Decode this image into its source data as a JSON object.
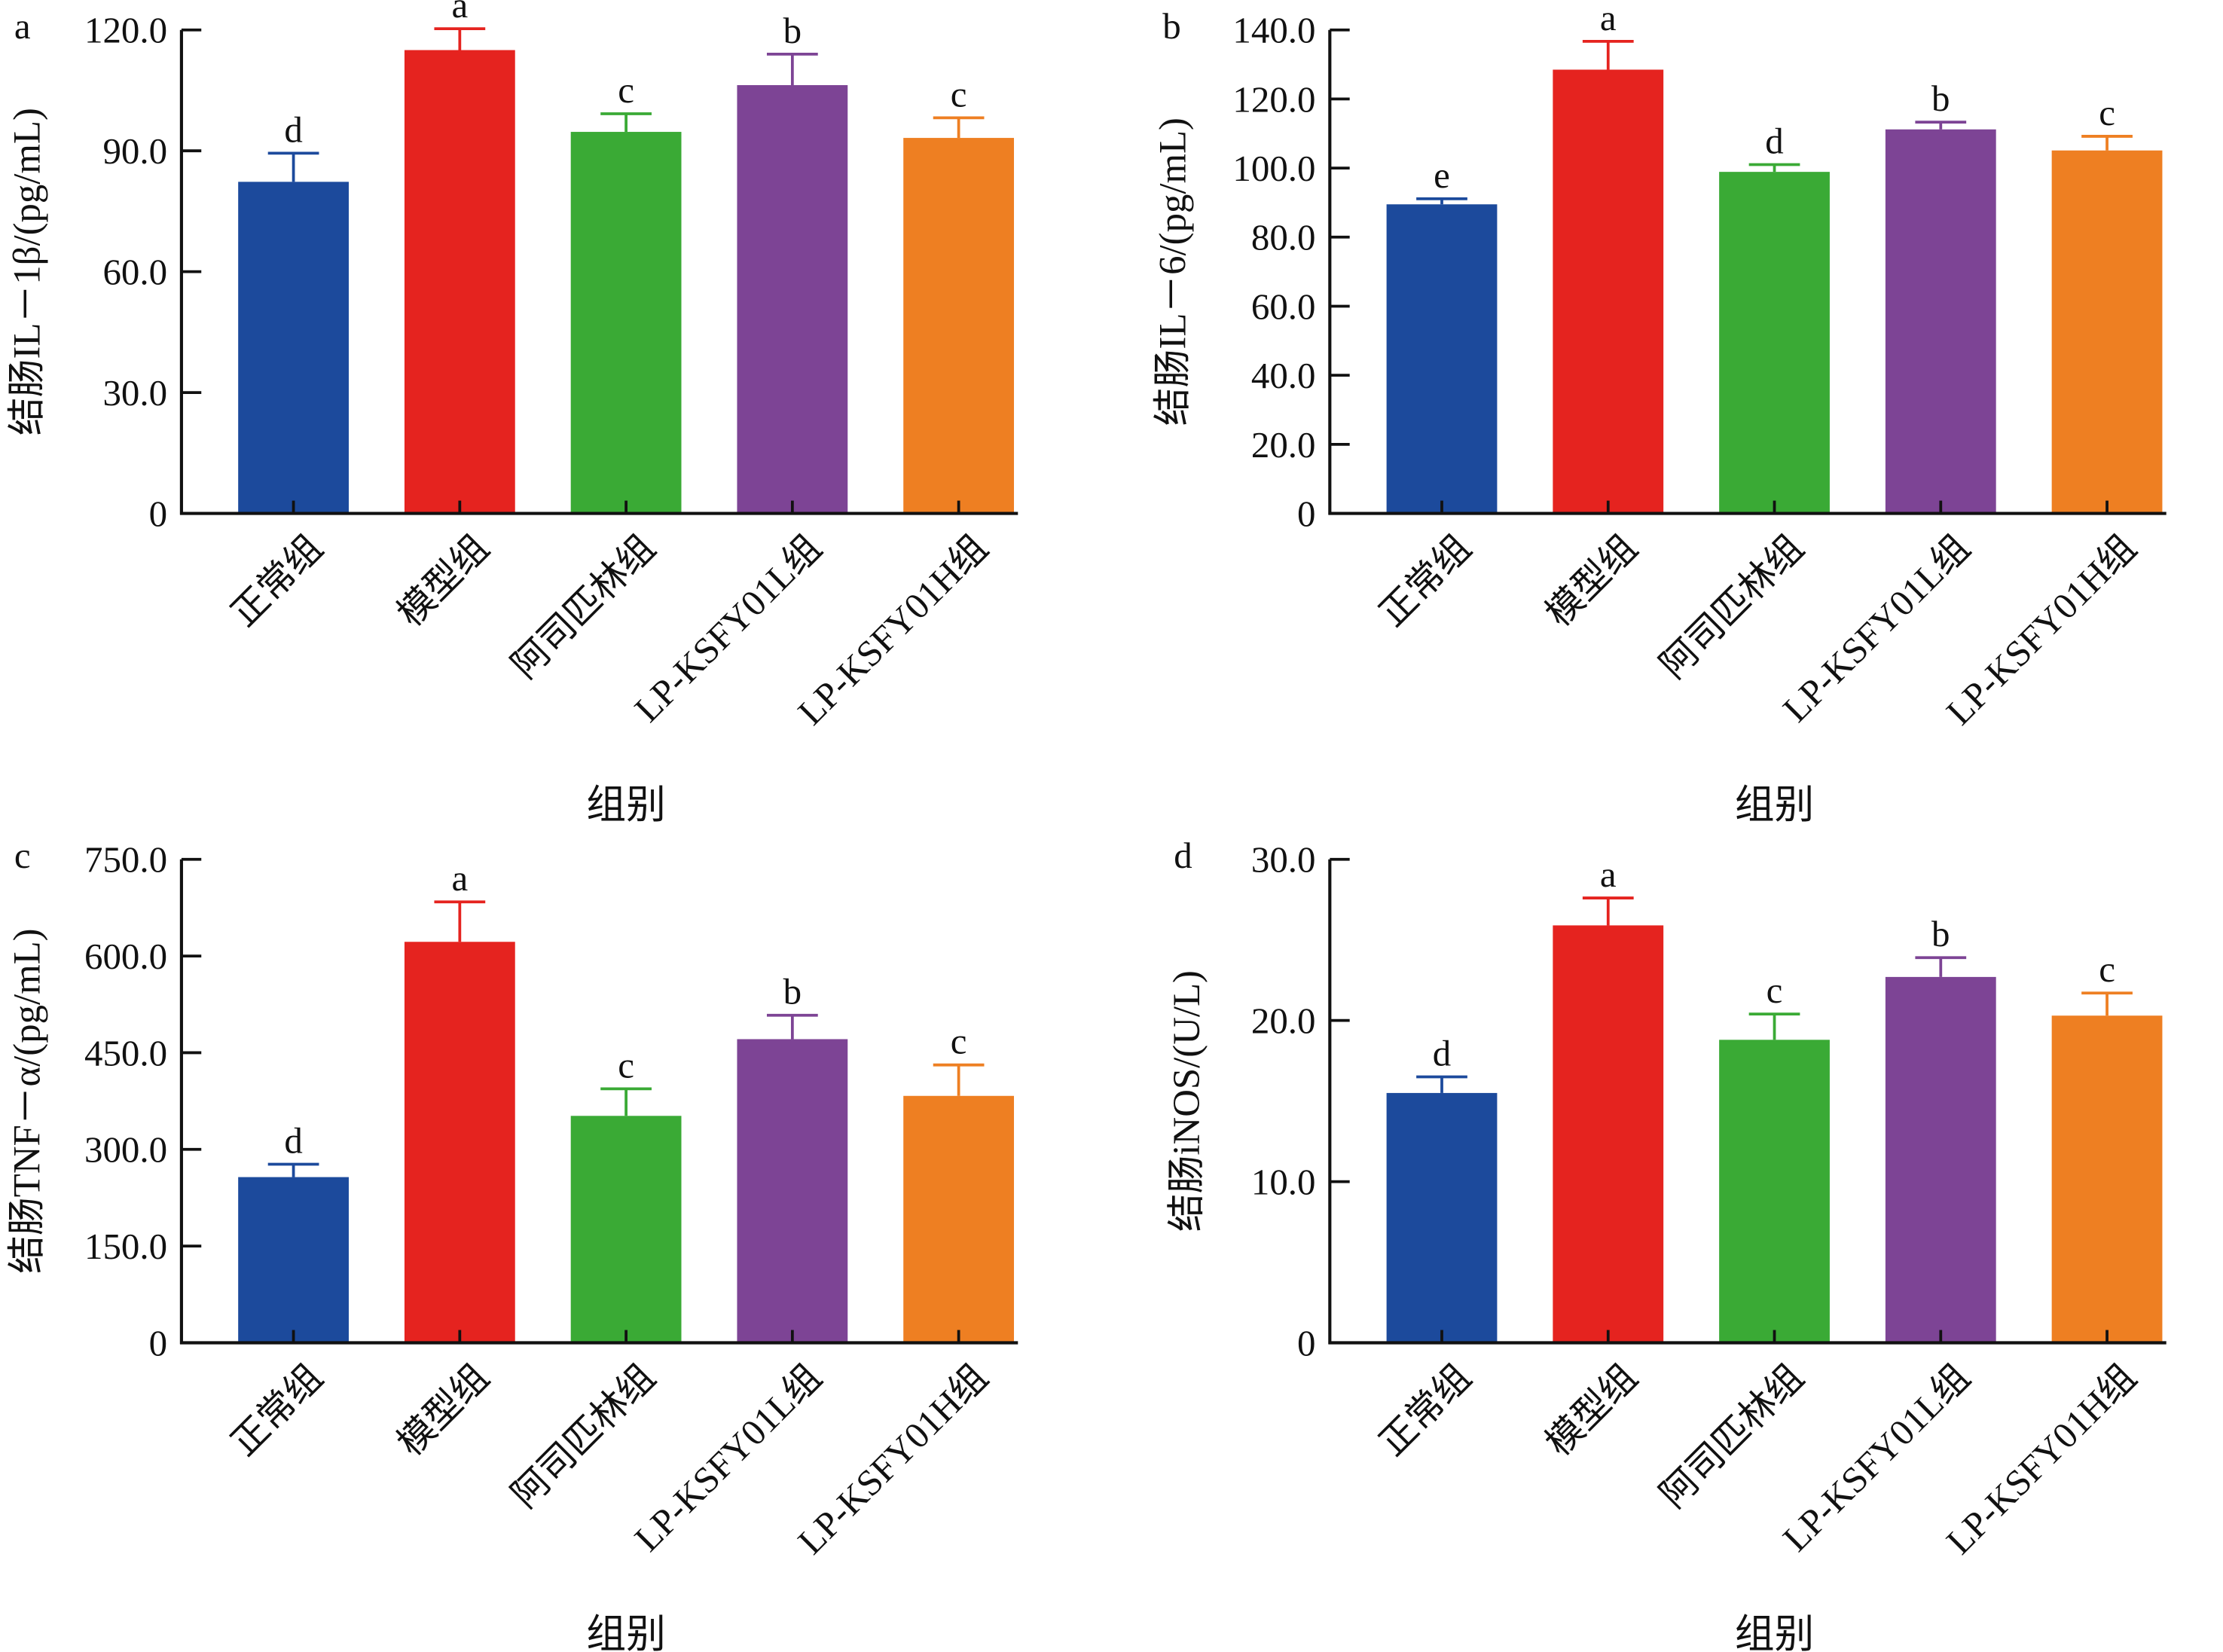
{
  "colors": [
    "#1c4a9c",
    "#e5231f",
    "#3aaa35",
    "#7d4495",
    "#ee7f22"
  ],
  "chart_data": [
    {
      "type": "bar",
      "panel": "a",
      "title": "",
      "xlabel": "组别",
      "ylabel": "结肠IL－1β/(pg/mL)",
      "ylim": [
        0,
        120
      ],
      "yticks": [
        "0",
        "30.0",
        "60.0",
        "90.0",
        "120.0"
      ],
      "ytick_values": [
        0,
        30,
        60,
        90,
        120
      ],
      "categories": [
        "正常组",
        "模型组",
        "阿司匹林组",
        "LP-KSFY01L组",
        "LP-KSFY01H组"
      ],
      "values": [
        82.3,
        115.0,
        94.7,
        106.3,
        93.2
      ],
      "error_upper": [
        89.4,
        120.3,
        99.2,
        114.0,
        98.2
      ],
      "significance": [
        "d",
        "a",
        "c",
        "b",
        "c"
      ]
    },
    {
      "type": "bar",
      "panel": "b",
      "title": "",
      "xlabel": "组别",
      "ylabel": "结肠IL－6/(pg/mL)",
      "ylim": [
        0,
        140
      ],
      "yticks": [
        "0",
        "20.0",
        "40.0",
        "60.0",
        "80.0",
        "100.0",
        "120.0",
        "140.0"
      ],
      "ytick_values": [
        0,
        20,
        40,
        60,
        80,
        100,
        120,
        140
      ],
      "categories": [
        "正常组",
        "模型组",
        "阿司匹林组",
        "LP-KSFY01L组",
        "LP-KSFY01H组"
      ],
      "values": [
        89.5,
        128.5,
        98.9,
        111.2,
        105.1
      ],
      "error_upper": [
        91.1,
        136.7,
        101.0,
        113.3,
        109.2
      ],
      "significance": [
        "e",
        "a",
        "d",
        "b",
        "c"
      ]
    },
    {
      "type": "bar",
      "panel": "c",
      "title": "",
      "xlabel": "组别",
      "ylabel": "结肠TNF－α/(pg/mL)",
      "ylim": [
        0,
        750
      ],
      "yticks": [
        "0",
        "150.0",
        "300.0",
        "450.0",
        "600.0",
        "750.0"
      ],
      "ytick_values": [
        0,
        150,
        300,
        450,
        600,
        750
      ],
      "categories": [
        "正常组",
        "模型组",
        "阿司匹林组",
        "LP-KSFY01L组",
        "LP-KSFY01H组"
      ],
      "values": [
        257,
        622,
        352,
        471,
        383
      ],
      "error_upper": [
        277,
        684,
        394,
        508,
        431
      ],
      "significance": [
        "d",
        "a",
        "c",
        "b",
        "c"
      ]
    },
    {
      "type": "bar",
      "panel": "d",
      "title": "",
      "xlabel": "组别",
      "ylabel": "结肠iNOS/(U/L)",
      "ylim": [
        0,
        30
      ],
      "yticks": [
        "0",
        "10.0",
        "20.0",
        "30.0"
      ],
      "ytick_values": [
        0,
        10,
        20,
        30
      ],
      "categories": [
        "正常组",
        "模型组",
        "阿司匹林组",
        "LP-KSFY01L组",
        "LP-KSFY01H组"
      ],
      "values": [
        15.5,
        25.9,
        18.8,
        22.7,
        20.3
      ],
      "error_upper": [
        16.5,
        27.6,
        20.4,
        23.9,
        21.7
      ],
      "significance": [
        "d",
        "a",
        "c",
        "b",
        "c"
      ]
    }
  ]
}
